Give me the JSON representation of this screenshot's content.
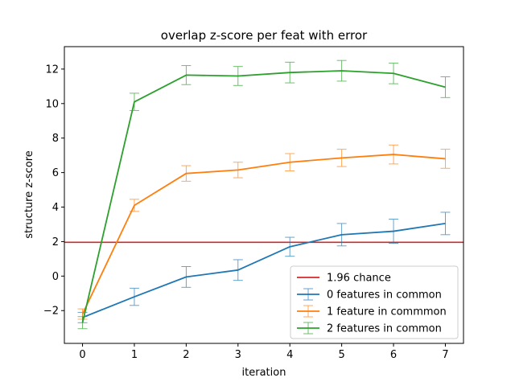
{
  "chart_data": {
    "type": "line",
    "title": "overlap z-score per feat with error",
    "xlabel": "iteration",
    "ylabel": "structure z-score",
    "x": [
      0,
      1,
      2,
      3,
      4,
      5,
      6,
      7
    ],
    "xlim": [
      -0.35,
      7.35
    ],
    "ylim": [
      -3.9,
      13.3
    ],
    "xticks": [
      "0",
      "1",
      "2",
      "3",
      "4",
      "5",
      "6",
      "7"
    ],
    "yticks": [
      "−2",
      "0",
      "2",
      "4",
      "6",
      "8",
      "10",
      "12"
    ],
    "ytick_values": [
      -2,
      0,
      2,
      4,
      6,
      8,
      10,
      12
    ],
    "grid": false,
    "legend_position": "lower-right",
    "reference_line": {
      "label": "1.96 chance",
      "y": 1.96,
      "color": "#d62728"
    },
    "series": [
      {
        "name": "0 features in common",
        "color": "#1f77b4",
        "values": [
          -2.4,
          -1.2,
          -0.05,
          0.35,
          1.7,
          2.4,
          2.6,
          3.05
        ],
        "errors": [
          0.3,
          0.5,
          0.6,
          0.6,
          0.55,
          0.65,
          0.7,
          0.65
        ]
      },
      {
        "name": "1 feature in commmon",
        "color": "#ff7f0e",
        "values": [
          -2.2,
          4.1,
          5.95,
          6.15,
          6.6,
          6.85,
          7.05,
          6.8
        ],
        "errors": [
          0.3,
          0.35,
          0.45,
          0.45,
          0.5,
          0.5,
          0.55,
          0.55
        ]
      },
      {
        "name": "2 features in common",
        "color": "#2ca02c",
        "values": [
          -2.7,
          10.1,
          11.65,
          11.6,
          11.8,
          11.9,
          11.75,
          10.95
        ],
        "errors": [
          0.35,
          0.5,
          0.55,
          0.55,
          0.6,
          0.6,
          0.6,
          0.6
        ]
      }
    ]
  }
}
